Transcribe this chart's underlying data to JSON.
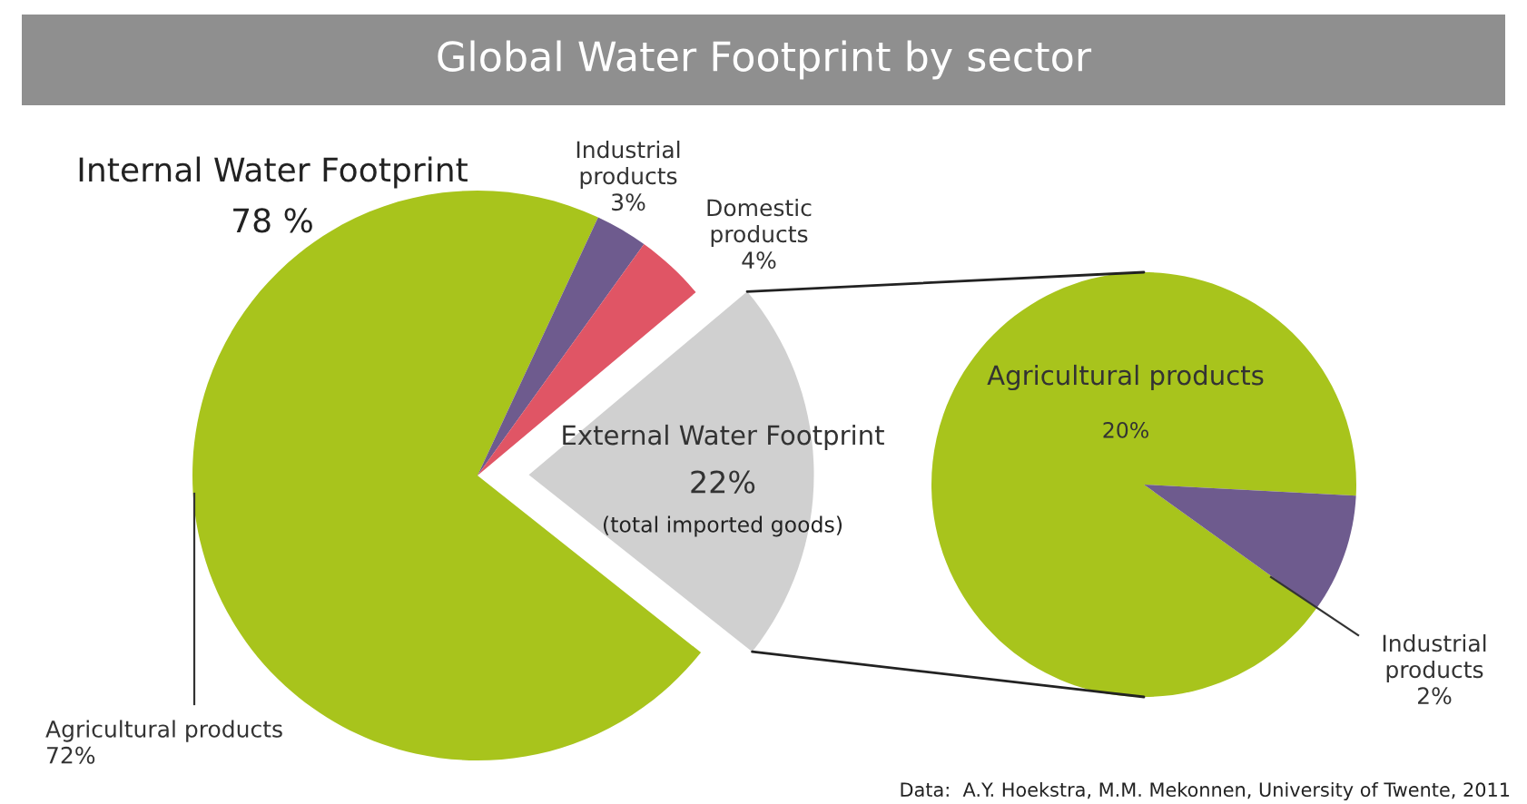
{
  "chart_data": [
    {
      "type": "pie",
      "title": "Global Water Footprint by sector",
      "categories": [
        "Agricultural products",
        "Industrial products",
        "Domestic products",
        "External Water Footprint"
      ],
      "values": [
        72,
        3,
        4,
        22
      ],
      "value_labels": [
        "72%",
        "3%",
        "4%",
        "22%"
      ],
      "colors": [
        "#a8c41c",
        "#6e5b8e",
        "#e05565",
        "#d0d0d0"
      ],
      "annotations": [
        "Internal Water Footprint",
        "78 %",
        "(total imported goods)",
        "Data:  A.Y. Hoekstra, M.M. Mekonnen, University of Twente, 2011"
      ]
    },
    {
      "type": "pie",
      "categories": [
        "Agricultural products",
        "Industrial products"
      ],
      "values": [
        20,
        2
      ],
      "value_labels": [
        "20%",
        "2%"
      ],
      "colors": [
        "#a8c41c",
        "#6e5b8e"
      ]
    }
  ]
}
